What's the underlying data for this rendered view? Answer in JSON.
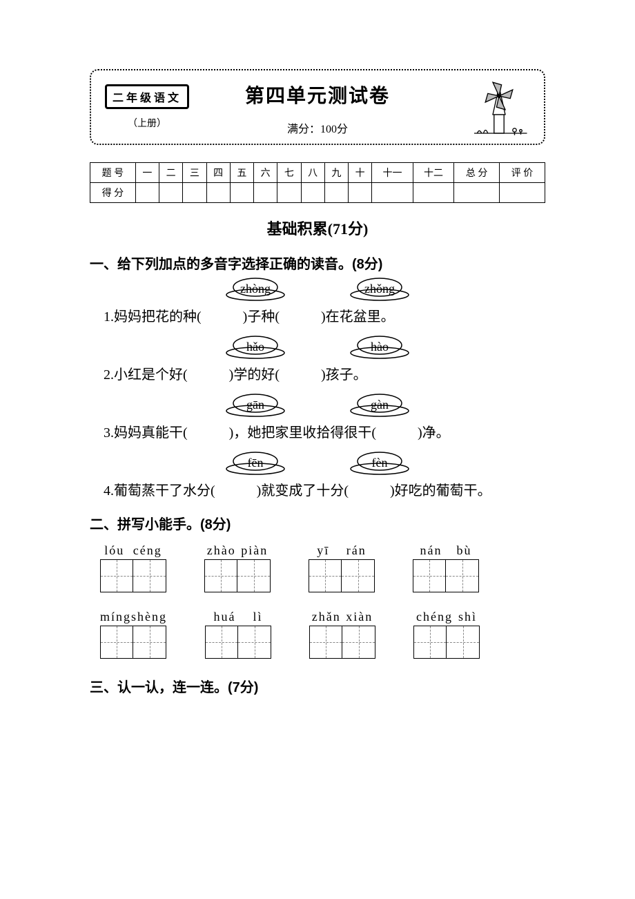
{
  "header": {
    "grade": "二年级语文",
    "semester": "（上册）",
    "title": "第四单元测试卷",
    "fullscore": "满分：100分"
  },
  "score_table": {
    "headers": [
      "题 号",
      "一",
      "二",
      "三",
      "四",
      "五",
      "六",
      "七",
      "八",
      "九",
      "十",
      "十一",
      "十二",
      "总 分",
      "评 价"
    ],
    "row_label": "得 分"
  },
  "section1": {
    "title": "基础积累(71分)"
  },
  "q1": {
    "heading": "一、给下列加点的多音字选择正确的读音。(8分)",
    "items": [
      {
        "pinyin": [
          "zhòng",
          "zhǒng"
        ],
        "sentence": "1.妈妈把花的种(　　　)子种(　　　)在花盆里。"
      },
      {
        "pinyin": [
          "hǎo",
          "hào"
        ],
        "sentence": "2.小红是个好(　　　)学的好(　　　)孩子。"
      },
      {
        "pinyin": [
          "gān",
          "gàn"
        ],
        "sentence": "3.妈妈真能干(　　　)，她把家里收拾得很干(　　　)净。"
      },
      {
        "pinyin": [
          "fēn",
          "fèn"
        ],
        "sentence": "4.葡萄蒸干了水分(　　　)就变成了十分(　　　)好吃的葡萄干。"
      }
    ]
  },
  "q2": {
    "heading": "二、拼写小能手。(8分)",
    "row1": [
      {
        "p1": "lóu",
        "p2": "céng"
      },
      {
        "p1": "zhào",
        "p2": "piàn"
      },
      {
        "p1": "yī",
        "p2": "rán"
      },
      {
        "p1": "nán",
        "p2": "bù"
      }
    ],
    "row2": [
      {
        "p1": "míng",
        "p2": "shèng"
      },
      {
        "p1": "huá",
        "p2": "lì"
      },
      {
        "p1": "zhǎn",
        "p2": "xiàn"
      },
      {
        "p1": "chéng",
        "p2": "shì"
      }
    ]
  },
  "q3": {
    "heading": "三、认一认，连一连。(7分)"
  }
}
